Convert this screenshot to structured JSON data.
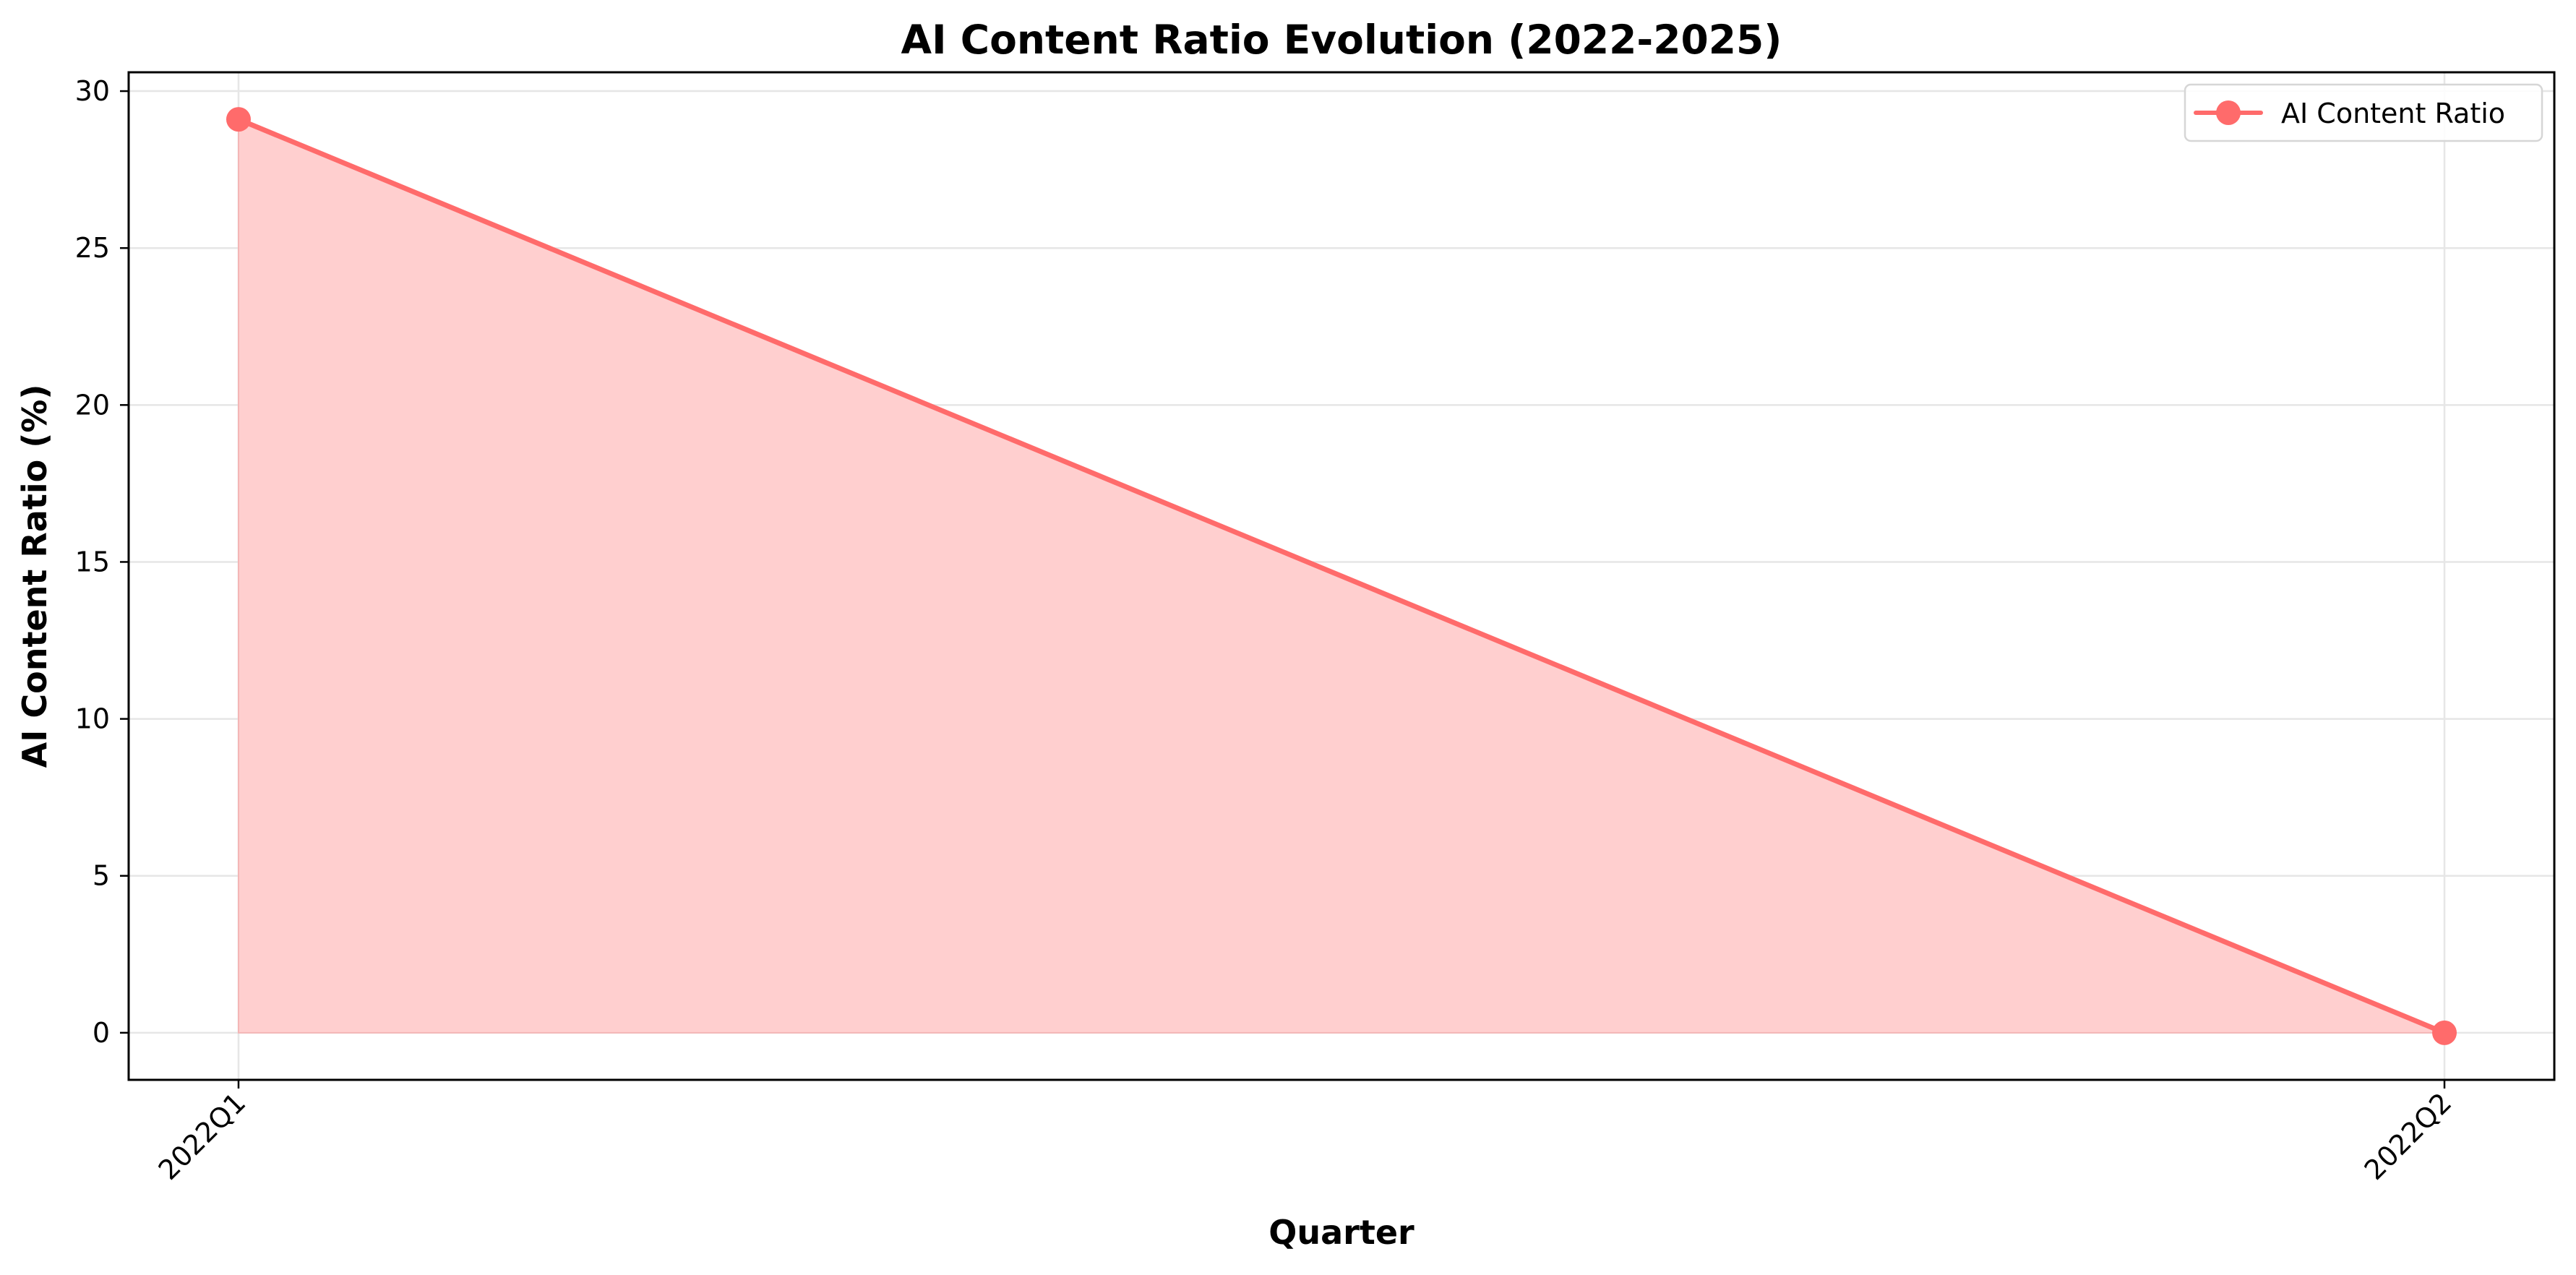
{
  "chart_data": {
    "type": "area",
    "title": "AI Content Ratio Evolution (2022-2025)",
    "xlabel": "Quarter",
    "ylabel": "AI Content Ratio (%)",
    "categories": [
      "2022Q1",
      "2022Q2"
    ],
    "series": [
      {
        "name": "AI Content Ratio",
        "values": [
          29.1,
          0.0
        ],
        "color": "#ff6b6b",
        "fill_color": "#ffcfcf",
        "marker": "circle"
      }
    ],
    "ylim": [
      -1.5,
      30.6
    ],
    "yticks": [
      0,
      5,
      10,
      15,
      20,
      25,
      30
    ],
    "ytick_labels": [
      "0",
      "5",
      "10",
      "15",
      "20",
      "25",
      "30"
    ],
    "grid": true,
    "legend_position": "top-right"
  }
}
